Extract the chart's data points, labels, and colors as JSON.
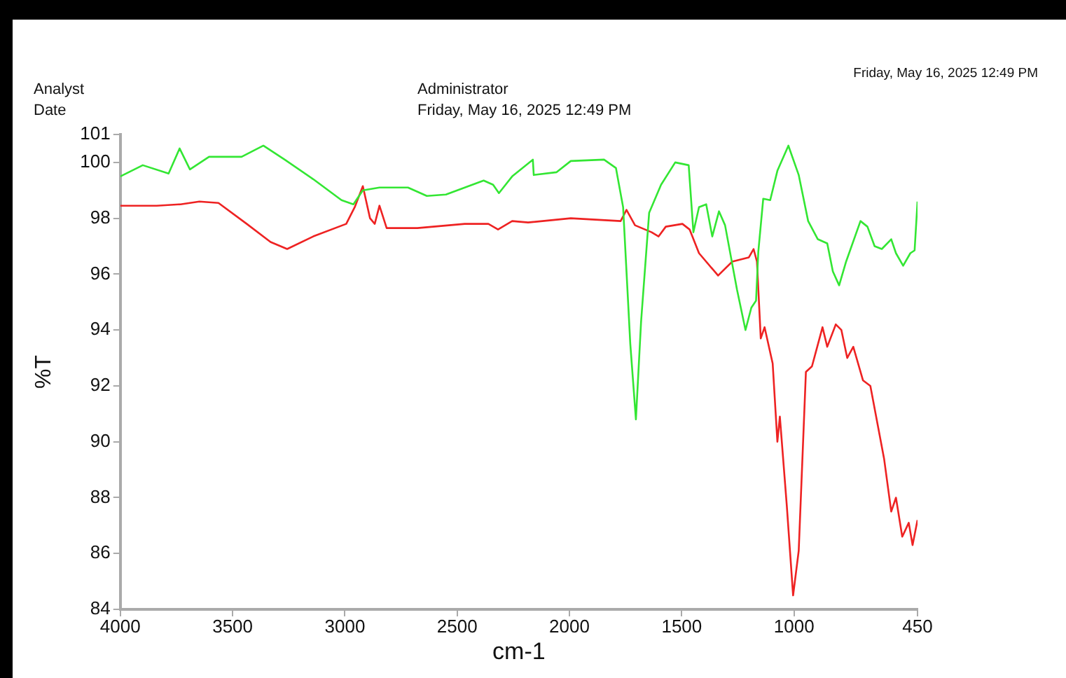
{
  "chart_data": {
    "type": "line",
    "xlabel": "cm-1",
    "ylabel": "%T",
    "xlim": [
      4000,
      450
    ],
    "xticks": [
      4000,
      3500,
      3000,
      2500,
      2000,
      1500,
      1000,
      450
    ],
    "ylim": [
      84,
      101
    ],
    "yticks": [
      84,
      86,
      88,
      90,
      92,
      94,
      96,
      98,
      100,
      101
    ],
    "grid": false,
    "legend": false,
    "marker": "none",
    "line_style": "solid",
    "annotations": [
      "Analyst",
      "Administrator",
      "Date",
      "Friday, May 16, 2025 12:49 PM",
      "Friday, May 16, 2025 12:49 PM"
    ],
    "series": [
      {
        "color": "#33e633",
        "x": [
          4000,
          3900,
          3785,
          3736,
          3690,
          3605,
          3460,
          3363,
          3268,
          3141,
          3015,
          2962,
          2920,
          2846,
          2719,
          2635,
          2550,
          2382,
          2340,
          2314,
          2255,
          2163,
          2159,
          2057,
          1994,
          1846,
          1793,
          1761,
          1729,
          1704,
          1681,
          1645,
          1592,
          1529,
          1469,
          1448,
          1423,
          1391,
          1364,
          1334,
          1307,
          1254,
          1216,
          1190,
          1169,
          1159,
          1137,
          1106,
          1074,
          1025,
          979,
          937,
          894,
          852,
          827,
          799,
          768,
          704,
          673,
          641,
          609,
          567,
          546,
          514,
          482,
          463,
          450
        ],
        "values": [
          99.5,
          99.9,
          99.6,
          100.5,
          99.75,
          100.2,
          100.2,
          100.6,
          100.1,
          99.4,
          98.65,
          98.5,
          99.0,
          99.1,
          99.1,
          98.8,
          98.85,
          99.35,
          99.2,
          98.9,
          99.5,
          100.1,
          99.55,
          99.65,
          100.05,
          100.1,
          99.8,
          98.4,
          93.5,
          90.8,
          94.3,
          98.2,
          99.2,
          100.0,
          99.9,
          97.5,
          98.4,
          98.5,
          97.35,
          98.25,
          97.75,
          95.45,
          94.0,
          94.8,
          95.05,
          96.8,
          98.7,
          98.65,
          99.7,
          100.6,
          99.55,
          97.9,
          97.25,
          97.1,
          96.1,
          95.6,
          96.45,
          97.9,
          97.7,
          97.0,
          96.9,
          97.25,
          96.75,
          96.3,
          96.75,
          96.85,
          98.6
        ]
      },
      {
        "color": "#ee2222",
        "x": [
          4000,
          3838,
          3732,
          3648,
          3563,
          3437,
          3331,
          3257,
          3141,
          2994,
          2956,
          2920,
          2888,
          2867,
          2846,
          2814,
          2677,
          2466,
          2361,
          2318,
          2255,
          2184,
          1994,
          1772,
          1746,
          1708,
          1634,
          1603,
          1571,
          1497,
          1465,
          1423,
          1338,
          1275,
          1201,
          1180,
          1165,
          1148,
          1131,
          1095,
          1074,
          1063,
          1032,
          1004,
          979,
          947,
          920,
          873,
          852,
          814,
          789,
          763,
          736,
          693,
          660,
          599,
          567,
          546,
          518,
          489,
          472,
          450
        ],
        "values": [
          98.45,
          98.45,
          98.5,
          98.6,
          98.55,
          97.8,
          97.15,
          96.9,
          97.35,
          97.8,
          98.4,
          99.15,
          98.0,
          97.8,
          98.45,
          97.65,
          97.65,
          97.8,
          97.8,
          97.6,
          97.9,
          97.85,
          98.0,
          97.9,
          98.3,
          97.75,
          97.5,
          97.35,
          97.7,
          97.8,
          97.6,
          96.75,
          95.95,
          96.45,
          96.6,
          96.9,
          96.45,
          93.7,
          94.1,
          92.8,
          90.0,
          90.9,
          87.7,
          84.5,
          86.1,
          92.5,
          92.7,
          94.1,
          93.4,
          94.2,
          94.0,
          93.0,
          93.4,
          92.2,
          92.0,
          89.4,
          87.5,
          88.0,
          86.6,
          87.1,
          86.3,
          87.2
        ]
      }
    ]
  }
}
